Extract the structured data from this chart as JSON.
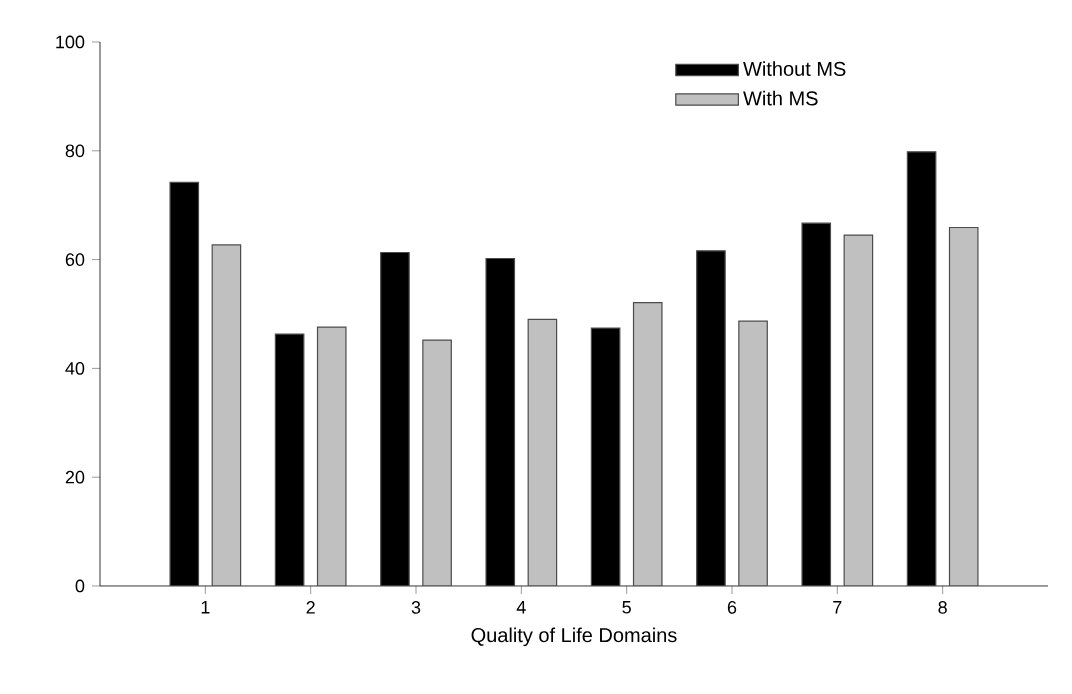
{
  "chart_data": {
    "type": "bar",
    "xlabel": "Quality of Life Domains",
    "categories": [
      "1",
      "2",
      "3",
      "4",
      "5",
      "6",
      "7",
      "8"
    ],
    "series": [
      {
        "name": "Without MS",
        "color": "#000000",
        "values": [
          74.2,
          46.3,
          61.3,
          60.2,
          47.4,
          61.6,
          66.7,
          79.8
        ]
      },
      {
        "name": "With MS",
        "color": "#c0c0c0",
        "values": [
          62.7,
          47.6,
          45.2,
          49.0,
          52.1,
          48.7,
          64.5,
          65.9
        ]
      }
    ],
    "ylim": [
      0,
      100
    ],
    "yticks": [
      0,
      20,
      40,
      60,
      80,
      100
    ],
    "legend": "top right",
    "grid": false
  }
}
